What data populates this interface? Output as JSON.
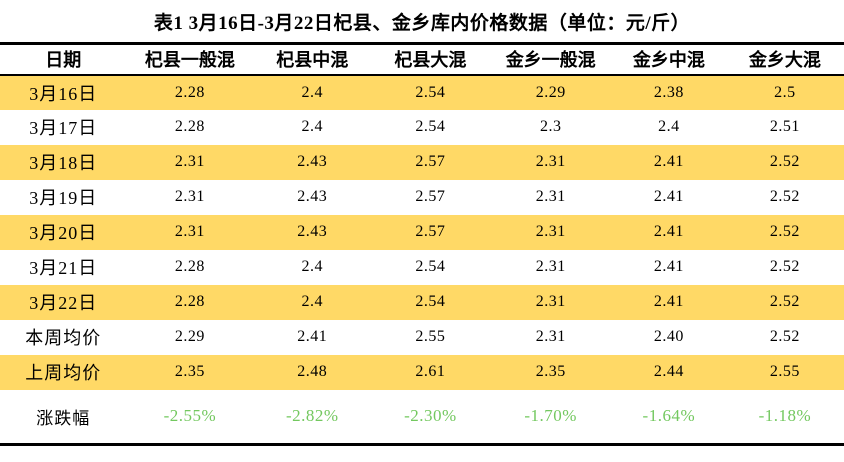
{
  "title": "表1  3月16日-3月22日杞县、金乡库内价格数据（单位：元/斤）",
  "table": {
    "columns": [
      "日期",
      "杞县一般混",
      "杞县中混",
      "杞县大混",
      "金乡一般混",
      "金乡中混",
      "金乡大混"
    ],
    "rows": [
      {
        "label": "3月16日",
        "values": [
          "2.28",
          "2.4",
          "2.54",
          "2.29",
          "2.38",
          "2.5"
        ],
        "highlight": true,
        "change_row": false
      },
      {
        "label": "3月17日",
        "values": [
          "2.28",
          "2.4",
          "2.54",
          "2.3",
          "2.4",
          "2.51"
        ],
        "highlight": false,
        "change_row": false
      },
      {
        "label": "3月18日",
        "values": [
          "2.31",
          "2.43",
          "2.57",
          "2.31",
          "2.41",
          "2.52"
        ],
        "highlight": true,
        "change_row": false
      },
      {
        "label": "3月19日",
        "values": [
          "2.31",
          "2.43",
          "2.57",
          "2.31",
          "2.41",
          "2.52"
        ],
        "highlight": false,
        "change_row": false
      },
      {
        "label": "3月20日",
        "values": [
          "2.31",
          "2.43",
          "2.57",
          "2.31",
          "2.41",
          "2.52"
        ],
        "highlight": true,
        "change_row": false
      },
      {
        "label": "3月21日",
        "values": [
          "2.28",
          "2.4",
          "2.54",
          "2.31",
          "2.41",
          "2.52"
        ],
        "highlight": false,
        "change_row": false
      },
      {
        "label": "3月22日",
        "values": [
          "2.28",
          "2.4",
          "2.54",
          "2.31",
          "2.41",
          "2.52"
        ],
        "highlight": true,
        "change_row": false
      },
      {
        "label": "本周均价",
        "values": [
          "2.29",
          "2.41",
          "2.55",
          "2.31",
          "2.40",
          "2.52"
        ],
        "highlight": false,
        "change_row": false
      },
      {
        "label": "上周均价",
        "values": [
          "2.35",
          "2.48",
          "2.61",
          "2.35",
          "2.44",
          "2.55"
        ],
        "highlight": true,
        "change_row": false
      },
      {
        "label": "涨跌幅",
        "values": [
          "-2.55%",
          "-2.82%",
          "-2.30%",
          "-1.70%",
          "-1.64%",
          "-1.18%"
        ],
        "highlight": false,
        "change_row": true
      }
    ]
  },
  "colors": {
    "highlight_row": "#FFD966",
    "negative_change_text": "#73C85F",
    "text": "#000000"
  }
}
